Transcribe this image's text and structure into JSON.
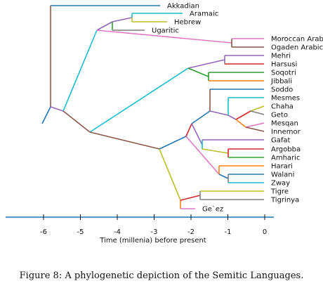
{
  "figure": {
    "caption": "Figure 8: A phylogenetic depiction of the Semitic Languages."
  },
  "axis": {
    "label": "Time (millenia) before present",
    "range": [
      -7,
      0
    ],
    "ticks": [
      -6,
      -5,
      -4,
      -3,
      -2,
      -1,
      0
    ],
    "tick_labels": [
      "-6",
      "-5",
      "-4",
      "-3",
      "-2",
      "-1",
      "0"
    ],
    "color": "#1f77b4"
  },
  "tree": {
    "leaves": [
      {
        "id": "akkadian",
        "label": "Akkadian",
        "color": "#1f77b4"
      },
      {
        "id": "aramaic",
        "label": "Aramaic",
        "color": "#17becf"
      },
      {
        "id": "hebrew",
        "label": "Hebrew",
        "color": "#bcbd22"
      },
      {
        "id": "ugaritic",
        "label": "Ugaritic",
        "color": "#7f7f7f"
      },
      {
        "id": "moroccan-arab",
        "label": "Moroccan Arab",
        "color": "#e377c2"
      },
      {
        "id": "ogaden-arabic",
        "label": "Ogaden Arabic",
        "color": "#8c564b"
      },
      {
        "id": "mehri",
        "label": "Mehri",
        "color": "#9467bd"
      },
      {
        "id": "harsusi",
        "label": "Harsusi",
        "color": "#d62728"
      },
      {
        "id": "soqotri",
        "label": "Soqotri",
        "color": "#2ca02c"
      },
      {
        "id": "jibbali",
        "label": "Jibbali",
        "color": "#ff7f0e"
      },
      {
        "id": "soddo",
        "label": "Soddo",
        "color": "#1f77b4"
      },
      {
        "id": "mesmes",
        "label": "Mesmes",
        "color": "#17becf"
      },
      {
        "id": "chaha",
        "label": "Chaha",
        "color": "#bcbd22"
      },
      {
        "id": "geto",
        "label": "Geto",
        "color": "#7f7f7f"
      },
      {
        "id": "mesqan",
        "label": "Mesqan",
        "color": "#e377c2"
      },
      {
        "id": "innemor",
        "label": "Innemor",
        "color": "#8c564b"
      },
      {
        "id": "gafat",
        "label": "Gafat",
        "color": "#9467bd"
      },
      {
        "id": "argobba",
        "label": "Argobba",
        "color": "#d62728"
      },
      {
        "id": "amharic",
        "label": "Amharic",
        "color": "#2ca02c"
      },
      {
        "id": "harari",
        "label": "Harari",
        "color": "#ff7f0e"
      },
      {
        "id": "walani",
        "label": "Walani",
        "color": "#1f77b4"
      },
      {
        "id": "zway",
        "label": "Zway",
        "color": "#17becf"
      },
      {
        "id": "tigre",
        "label": "Tigre",
        "color": "#bcbd22"
      },
      {
        "id": "tigrinya",
        "label": "Tigrinya",
        "color": "#7f7f7f"
      },
      {
        "id": "geez",
        "label": "Ge`ez",
        "color": "#e377c2"
      }
    ]
  }
}
